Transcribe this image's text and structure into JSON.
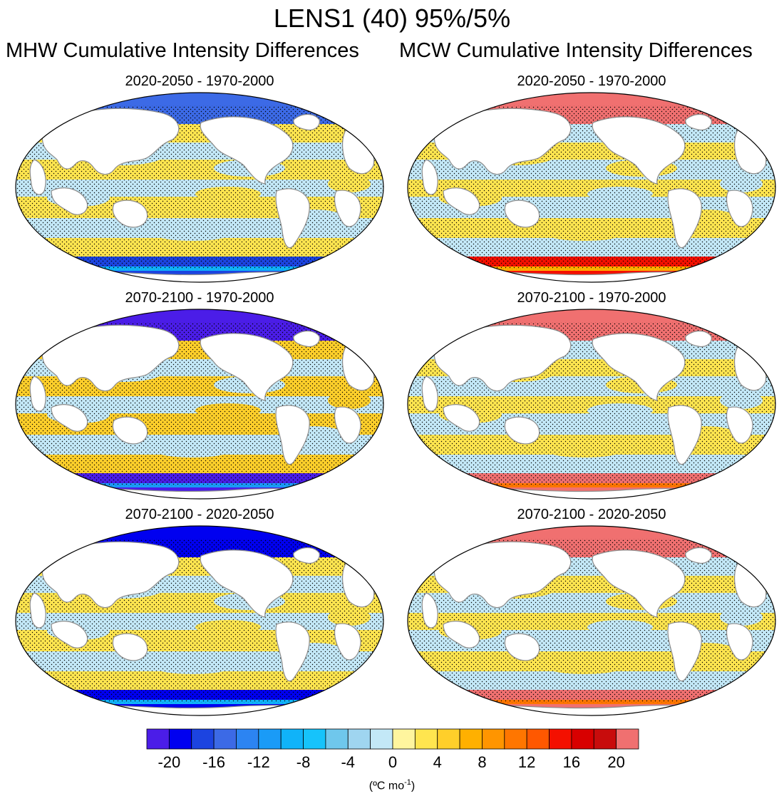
{
  "title": "LENS1 (40) 95%/5%",
  "column_titles": {
    "left": "MHW Cumulative Intensity Differences",
    "right": "MCW Cumulative Intensity Differences"
  },
  "colors": {
    "land": "#ffffff",
    "coast": "#8c8c8c",
    "stipple": "#000000"
  },
  "chart_data": [
    {
      "type": "heatmap",
      "variable": "MHW",
      "title": "2020-2050 - 1970-2000",
      "dominant_value": 2,
      "secondary_value": -2,
      "polar_value": -18,
      "arctic_value": -16
    },
    {
      "type": "heatmap",
      "variable": "MCW",
      "title": "2020-2050 - 1970-2000",
      "dominant_value": -2,
      "secondary_value": 2,
      "polar_value": 14,
      "arctic_value": 22
    },
    {
      "type": "heatmap",
      "variable": "MHW",
      "title": "2070-2100 - 1970-2000",
      "dominant_value": 4,
      "secondary_value": -2,
      "polar_value": -22,
      "arctic_value": -22
    },
    {
      "type": "heatmap",
      "variable": "MCW",
      "title": "2070-2100 - 1970-2000",
      "dominant_value": -2,
      "secondary_value": 2,
      "polar_value": 22,
      "arctic_value": 22
    },
    {
      "type": "heatmap",
      "variable": "MHW",
      "title": "2070-2100 - 2020-2050",
      "dominant_value": 2,
      "secondary_value": -2,
      "polar_value": -20,
      "arctic_value": -20
    },
    {
      "type": "heatmap",
      "variable": "MCW",
      "title": "2070-2100 - 2020-2050",
      "dominant_value": -2,
      "secondary_value": 2,
      "polar_value": 20,
      "arctic_value": 22
    }
  ],
  "colorbar": {
    "levels": [
      -22,
      -20,
      -18,
      -16,
      -14,
      -12,
      -10,
      -8,
      -6,
      -4,
      -2,
      0,
      2,
      4,
      6,
      8,
      10,
      12,
      14,
      16,
      18,
      20,
      22
    ],
    "colors": [
      "#4b1de8",
      "#0000f0",
      "#1c44e0",
      "#3c6ae6",
      "#2c84f2",
      "#1a9bf7",
      "#10b3f9",
      "#16c3fb",
      "#6fc7ec",
      "#9fd5f0",
      "#c3e8f7",
      "#fff59e",
      "#ffe54f",
      "#ffcf2a",
      "#ffb000",
      "#ff9500",
      "#ff7600",
      "#ff5800",
      "#f41000",
      "#d80000",
      "#c80c0c",
      "#f07070"
    ],
    "tick_labels": [
      "-20",
      "-16",
      "-12",
      "-8",
      "-4",
      "0",
      "4",
      "8",
      "12",
      "16",
      "20"
    ],
    "units": "(ºC mo",
    "units_exp": "-1",
    "units_close": ")"
  }
}
